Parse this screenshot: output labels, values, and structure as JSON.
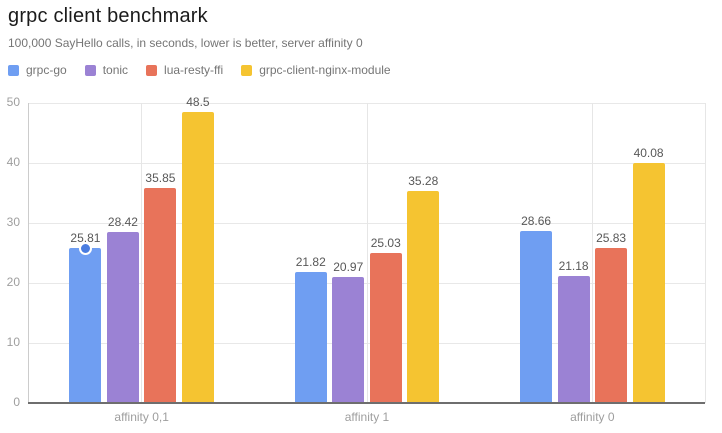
{
  "chart_data": {
    "type": "bar",
    "title": "grpc client benchmark",
    "subtitle": "100,000 SayHello calls, in seconds, lower is better, server affinity 0",
    "categories": [
      "affinity 0,1",
      "affinity 1",
      "affinity 0"
    ],
    "series": [
      {
        "name": "grpc-go",
        "color": "#6f9ef2",
        "values": [
          25.81,
          21.82,
          28.66
        ]
      },
      {
        "name": "tonic",
        "color": "#9b82d4",
        "values": [
          28.42,
          20.97,
          21.18
        ]
      },
      {
        "name": "lua-resty-ffi",
        "color": "#e8735a",
        "values": [
          35.85,
          25.03,
          25.83
        ]
      },
      {
        "name": "grpc-client-nginx-module",
        "color": "#f5c431",
        "values": [
          48.5,
          35.28,
          40.08
        ]
      }
    ],
    "y_ticks": [
      0,
      10,
      20,
      30,
      40,
      50
    ],
    "ylim": [
      0,
      50
    ],
    "xlabel": "",
    "ylabel": "",
    "grid": true,
    "legend_position": "top",
    "value_labels": true,
    "marker": {
      "series_index": 0,
      "category_index": 0,
      "color": "#4a7de0",
      "border_color": "#ffffff"
    }
  },
  "colors": {
    "background": "#ffffff",
    "title_text": "#1b1b1b",
    "subtitle_text": "#757575",
    "axis_label_text": "#9e9e9e",
    "value_label_text": "#585858",
    "gridline": "#e8e8e8",
    "axis_line_left": "#cccccc",
    "axis_line_bottom": "#6e6e6e"
  }
}
